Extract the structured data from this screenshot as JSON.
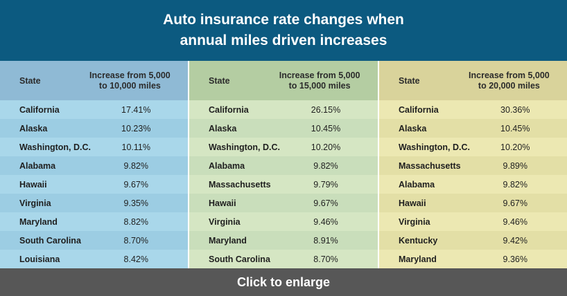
{
  "header": {
    "title_line1": "Auto insurance rate changes when",
    "title_line2": "annual miles driven increases"
  },
  "footer": {
    "label": "Click to enlarge"
  },
  "colors": {
    "header_bg": "#0c5a80",
    "footer_bg": "#575757",
    "panel1_bg": "#a9d7ea",
    "panel2_bg": "#d5e6c3",
    "panel3_bg": "#ece8b2"
  },
  "chart_data": {
    "type": "table",
    "title": "Auto insurance rate changes when annual miles driven increases",
    "tables": [
      {
        "state_header": "State",
        "value_header_line1": "Increase from 5,000",
        "value_header_line2": "to 10,000 miles",
        "rows": [
          {
            "state": "California",
            "value": "17.41%"
          },
          {
            "state": "Alaska",
            "value": "10.23%"
          },
          {
            "state": "Washington, D.C.",
            "value": "10.11%"
          },
          {
            "state": "Alabama",
            "value": "9.82%"
          },
          {
            "state": "Hawaii",
            "value": "9.67%"
          },
          {
            "state": "Virginia",
            "value": "9.35%"
          },
          {
            "state": "Maryland",
            "value": "8.82%"
          },
          {
            "state": "South Carolina",
            "value": "8.70%"
          },
          {
            "state": "Louisiana",
            "value": "8.42%"
          }
        ]
      },
      {
        "state_header": "State",
        "value_header_line1": "Increase from 5,000",
        "value_header_line2": "to 15,000 miles",
        "rows": [
          {
            "state": "California",
            "value": "26.15%"
          },
          {
            "state": "Alaska",
            "value": "10.45%"
          },
          {
            "state": "Washington, D.C.",
            "value": "10.20%"
          },
          {
            "state": "Alabama",
            "value": "9.82%"
          },
          {
            "state": "Massachusetts",
            "value": "9.79%"
          },
          {
            "state": "Hawaii",
            "value": "9.67%"
          },
          {
            "state": "Virginia",
            "value": "9.46%"
          },
          {
            "state": "Maryland",
            "value": "8.91%"
          },
          {
            "state": "South Carolina",
            "value": "8.70%"
          }
        ]
      },
      {
        "state_header": "State",
        "value_header_line1": "Increase from 5,000",
        "value_header_line2": "to 20,000 miles",
        "rows": [
          {
            "state": "California",
            "value": "30.36%"
          },
          {
            "state": "Alaska",
            "value": "10.45%"
          },
          {
            "state": "Washington, D.C.",
            "value": "10.20%"
          },
          {
            "state": "Massachusetts",
            "value": "9.89%"
          },
          {
            "state": "Alabama",
            "value": "9.82%"
          },
          {
            "state": "Hawaii",
            "value": "9.67%"
          },
          {
            "state": "Virginia",
            "value": "9.46%"
          },
          {
            "state": "Kentucky",
            "value": "9.42%"
          },
          {
            "state": "Maryland",
            "value": "9.36%"
          }
        ]
      }
    ]
  }
}
